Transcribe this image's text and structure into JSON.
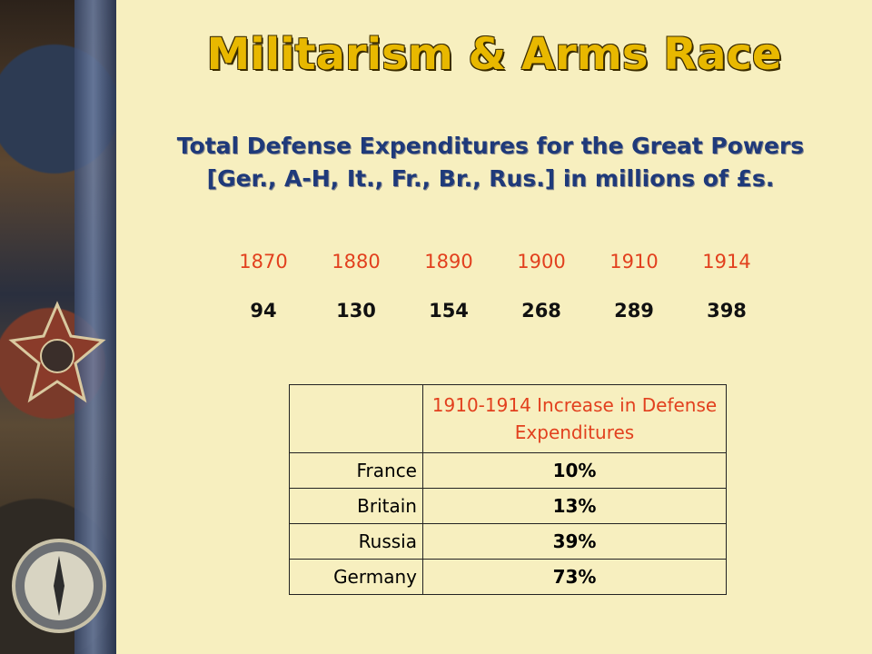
{
  "slide": {
    "title": "Militarism & Arms Race",
    "subtitle": "Total Defense Expenditures for the Great Powers [Ger., A-H, It., Fr., Br., Rus.] in millions of £s."
  },
  "expenditures": {
    "years": [
      "1870",
      "1880",
      "1890",
      "1900",
      "1910",
      "1914"
    ],
    "values": [
      "94",
      "130",
      "154",
      "268",
      "289",
      "398"
    ]
  },
  "increase_table": {
    "header": "1910-1914 Increase in Defense Expenditures",
    "rows": [
      {
        "country": "France",
        "percent": "10%"
      },
      {
        "country": "Britain",
        "percent": "13%"
      },
      {
        "country": "Russia",
        "percent": "39%"
      },
      {
        "country": "Germany",
        "percent": "73%"
      }
    ]
  },
  "colors": {
    "title": "#e8b800",
    "subtitle": "#1f3a7a",
    "years": "#e2401e",
    "table_header": "#e2401e",
    "background": "#f7efbf"
  }
}
